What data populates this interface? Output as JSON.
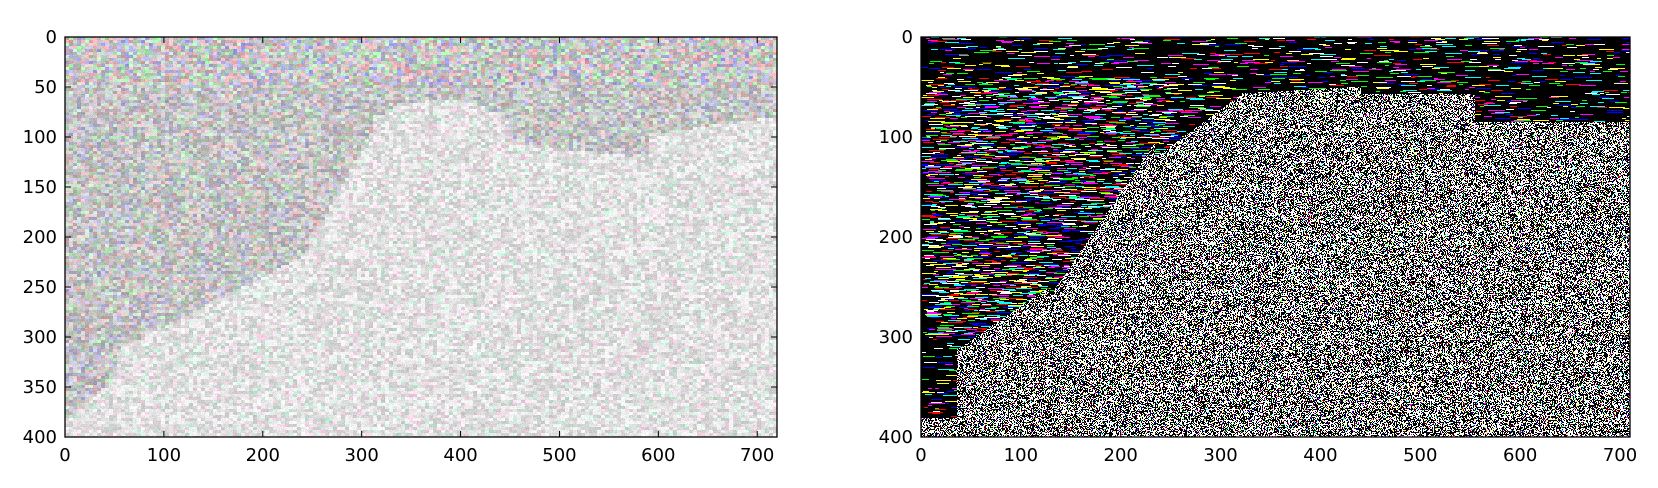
{
  "chart_data": [
    {
      "type": "heatmap",
      "panel": "left",
      "image_description": "noisy pastel grayscale-ish rendering of a granite cliff scene",
      "xlim": [
        0,
        720
      ],
      "ylim": [
        400,
        0
      ],
      "x_ticks": [
        0,
        100,
        200,
        300,
        400,
        500,
        600,
        700
      ],
      "y_ticks": [
        0,
        50,
        100,
        150,
        200,
        250,
        300,
        350,
        400
      ],
      "x_tick_labels": [
        "0",
        "100",
        "200",
        "300",
        "400",
        "500",
        "600",
        "700"
      ],
      "y_tick_labels": [
        "0",
        "50",
        "100",
        "150",
        "200",
        "250",
        "300",
        "350",
        "400"
      ],
      "grid": false
    },
    {
      "type": "heatmap",
      "panel": "right",
      "image_description": "high-contrast black/white noise with saturated color streaks in the upper-left",
      "xlim": [
        0,
        710
      ],
      "ylim": [
        400,
        0
      ],
      "x_ticks": [
        0,
        100,
        200,
        300,
        400,
        500,
        600,
        700
      ],
      "y_ticks": [
        0,
        100,
        200,
        300,
        400
      ],
      "x_tick_labels": [
        "0",
        "100",
        "200",
        "300",
        "400",
        "500",
        "600",
        "700"
      ],
      "y_tick_labels": [
        "0",
        "100",
        "200",
        "300",
        "400"
      ],
      "grid": false
    }
  ]
}
